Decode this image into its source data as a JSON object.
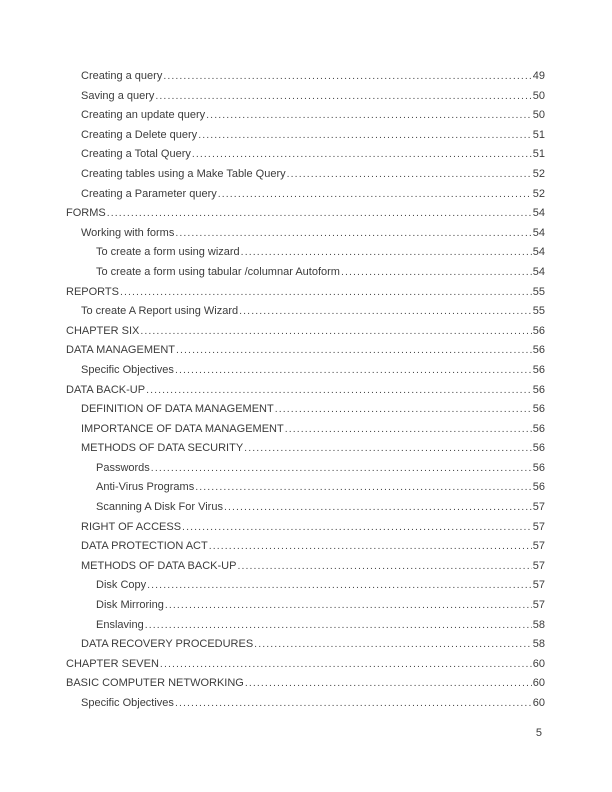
{
  "document": {
    "page_number": "5"
  },
  "toc": {
    "entries": [
      {
        "label": "Creating a query",
        "page": "49",
        "level": 2
      },
      {
        "label": "Saving a query",
        "page": "50",
        "level": 2
      },
      {
        "label": "Creating an update query",
        "page": "50",
        "level": 2
      },
      {
        "label": "Creating a Delete query",
        "page": "51",
        "level": 2
      },
      {
        "label": "Creating a Total Query",
        "page": "51",
        "level": 2
      },
      {
        "label": "Creating tables using a Make Table Query",
        "page": "52",
        "level": 2
      },
      {
        "label": "Creating a Parameter query",
        "page": "52",
        "level": 2
      },
      {
        "label": "FORMS",
        "page": "54",
        "level": 1
      },
      {
        "label": "Working with forms",
        "page": "54",
        "level": 2
      },
      {
        "label": "To create a form using wizard",
        "page": "54",
        "level": 3
      },
      {
        "label": "To create a form using tabular /columnar Autoform",
        "page": "54",
        "level": 3
      },
      {
        "label": "REPORTS",
        "page": "55",
        "level": 1
      },
      {
        "label": "To create A Report using Wizard",
        "page": "55",
        "level": 2
      },
      {
        "label": "CHAPTER SIX",
        "page": "56",
        "level": 1
      },
      {
        "label": "DATA MANAGEMENT",
        "page": "56",
        "level": 1
      },
      {
        "label": "Specific Objectives",
        "page": "56",
        "level": 2
      },
      {
        "label": "DATA BACK-UP",
        "page": "56",
        "level": 1
      },
      {
        "label": "DEFINITION OF DATA MANAGEMENT",
        "page": "56",
        "level": 2
      },
      {
        "label": "IMPORTANCE OF DATA MANAGEMENT",
        "page": "56",
        "level": 2
      },
      {
        "label": "METHODS OF DATA SECURITY",
        "page": "56",
        "level": 2
      },
      {
        "label": "Passwords",
        "page": "56",
        "level": 3
      },
      {
        "label": "Anti-Virus Programs",
        "page": "56",
        "level": 3
      },
      {
        "label": "Scanning A Disk For Virus",
        "page": "57",
        "level": 3
      },
      {
        "label": "RIGHT OF ACCESS",
        "page": "57",
        "level": 2
      },
      {
        "label": "DATA PROTECTION ACT",
        "page": "57",
        "level": 2
      },
      {
        "label": "METHODS OF DATA BACK-UP",
        "page": "57",
        "level": 2
      },
      {
        "label": "Disk Copy",
        "page": "57",
        "level": 3
      },
      {
        "label": "Disk Mirroring",
        "page": "57",
        "level": 3
      },
      {
        "label": "Enslaving",
        "page": "58",
        "level": 3
      },
      {
        "label": "DATA RECOVERY PROCEDURES",
        "page": "58",
        "level": 2
      },
      {
        "label": "CHAPTER SEVEN",
        "page": "60",
        "level": 1
      },
      {
        "label": "BASIC COMPUTER NETWORKING",
        "page": "60",
        "level": 1
      },
      {
        "label": "Specific Objectives",
        "page": "60",
        "level": 2
      }
    ]
  }
}
